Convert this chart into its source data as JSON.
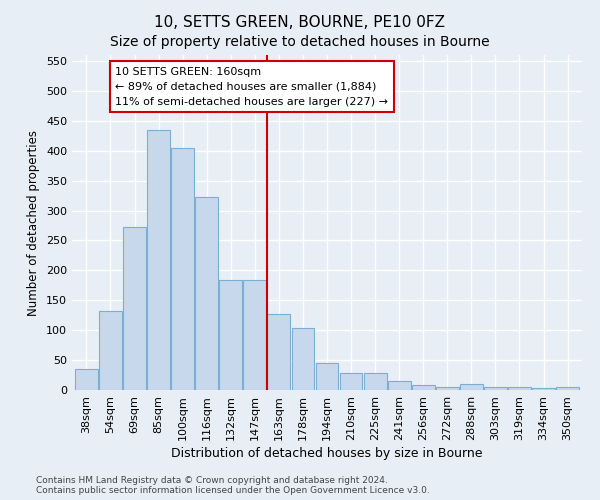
{
  "title": "10, SETTS GREEN, BOURNE, PE10 0FZ",
  "subtitle": "Size of property relative to detached houses in Bourne",
  "xlabel": "Distribution of detached houses by size in Bourne",
  "ylabel": "Number of detached properties",
  "categories": [
    "38sqm",
    "54sqm",
    "69sqm",
    "85sqm",
    "100sqm",
    "116sqm",
    "132sqm",
    "147sqm",
    "163sqm",
    "178sqm",
    "194sqm",
    "210sqm",
    "225sqm",
    "241sqm",
    "256sqm",
    "272sqm",
    "288sqm",
    "303sqm",
    "319sqm",
    "334sqm",
    "350sqm"
  ],
  "values": [
    35,
    132,
    272,
    435,
    405,
    322,
    184,
    184,
    127,
    103,
    45,
    28,
    28,
    15,
    8,
    5,
    10,
    5,
    5,
    3,
    5
  ],
  "bar_color": "#c8d8ec",
  "bar_edge_color": "#7aafd4",
  "vline_color": "#cc0000",
  "annotation_line1": "10 SETTS GREEN: 160sqm",
  "annotation_line2": "← 89% of detached houses are smaller (1,884)",
  "annotation_line3": "11% of semi-detached houses are larger (227) →",
  "annotation_box_color": "#ffffff",
  "annotation_box_edge_color": "#cc0000",
  "ylim": [
    0,
    560
  ],
  "yticks": [
    0,
    50,
    100,
    150,
    200,
    250,
    300,
    350,
    400,
    450,
    500,
    550
  ],
  "background_color": "#e8eef5",
  "grid_color": "#ffffff",
  "footer_line1": "Contains HM Land Registry data © Crown copyright and database right 2024.",
  "footer_line2": "Contains public sector information licensed under the Open Government Licence v3.0.",
  "title_fontsize": 11,
  "subtitle_fontsize": 10,
  "xlabel_fontsize": 9,
  "ylabel_fontsize": 8.5,
  "tick_fontsize": 8,
  "annotation_fontsize": 8,
  "footer_fontsize": 6.5
}
